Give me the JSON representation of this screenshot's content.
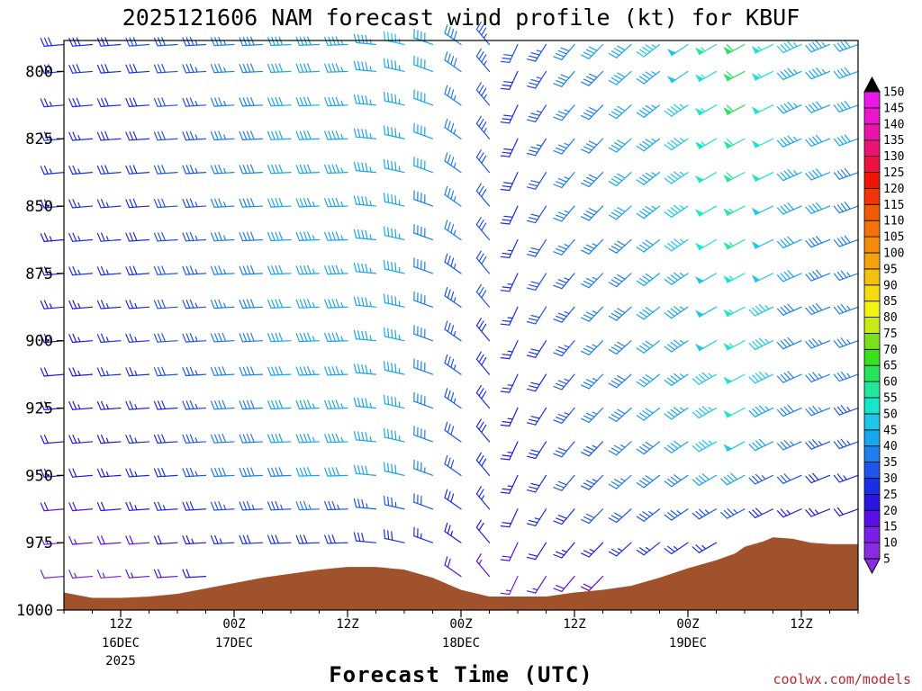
{
  "chart_data": {
    "type": "wind-barb-time-height",
    "title": "2025121606 NAM forecast wind profile (kt) for KBUF",
    "xlabel": "Forecast Time (UTC)",
    "ylabel": "",
    "credit": "coolwx.com/models",
    "y_axis": {
      "ticks": [
        800,
        825,
        850,
        875,
        900,
        925,
        950,
        975,
        1000
      ],
      "lim": [
        788.5,
        1000
      ],
      "units": "hPa"
    },
    "x_axis": {
      "lim_hours": [
        6,
        90
      ],
      "ticks": [
        {
          "hour": 12,
          "label1": "12Z",
          "label2": "16DEC",
          "label3": "2025"
        },
        {
          "hour": 24,
          "label1": "00Z",
          "label2": "17DEC",
          "label3": ""
        },
        {
          "hour": 36,
          "label1": "12Z",
          "label2": "",
          "label3": ""
        },
        {
          "hour": 48,
          "label1": "00Z",
          "label2": "18DEC",
          "label3": ""
        },
        {
          "hour": 60,
          "label1": "12Z",
          "label2": "",
          "label3": ""
        },
        {
          "hour": 72,
          "label1": "00Z",
          "label2": "19DEC",
          "label3": ""
        },
        {
          "hour": 84,
          "label1": "12Z",
          "label2": "",
          "label3": ""
        }
      ]
    },
    "colorbar": {
      "levels": [
        5,
        10,
        15,
        20,
        25,
        30,
        35,
        40,
        45,
        50,
        55,
        60,
        65,
        70,
        75,
        80,
        85,
        90,
        95,
        100,
        105,
        110,
        115,
        120,
        125,
        130,
        135,
        140,
        145,
        150
      ],
      "colors": [
        "#8a2be2",
        "#7a1fe6",
        "#5a0fe8",
        "#2a14e4",
        "#1a2ee6",
        "#1f55ea",
        "#1f7fee",
        "#17a6f0",
        "#1dc6ea",
        "#18e6cc",
        "#21e89c",
        "#27e45a",
        "#38e01e",
        "#7ae01a",
        "#c8ea18",
        "#f2f214",
        "#f5dc10",
        "#f5c00e",
        "#f5a30c",
        "#f58a0a",
        "#f47209",
        "#f25a08",
        "#f23406",
        "#ee1406",
        "#ec1242",
        "#ec1276",
        "#ec14a8",
        "#ec16cf",
        "#ea19ea"
      ],
      "under_color": "#8a2be2",
      "over_color": "#000000"
    },
    "surface_pressure": {
      "hours": [
        6,
        9,
        12,
        15,
        18,
        21,
        24,
        27,
        30,
        33,
        36,
        39,
        42,
        45,
        48,
        51,
        54,
        57,
        60,
        63,
        66,
        69,
        72,
        75,
        77,
        78,
        80,
        81,
        83,
        85,
        87,
        90
      ],
      "pressure": [
        993.5,
        995.5,
        995.5,
        995,
        994,
        992,
        990,
        988,
        986.5,
        985,
        984,
        984,
        985,
        988,
        992.5,
        995,
        995,
        995,
        993.5,
        992.5,
        991,
        988,
        984.5,
        981.5,
        979,
        976.5,
        974.5,
        973,
        973.5,
        975,
        975.5,
        975.5
      ],
      "fill_color": "#a0522d"
    },
    "wind": {
      "hours": [
        6,
        9,
        12,
        15,
        18,
        21,
        24,
        27,
        30,
        33,
        36,
        39,
        42,
        45,
        48,
        51,
        54,
        57,
        60,
        63,
        66,
        69,
        72,
        75,
        78,
        81,
        84,
        87,
        90
      ],
      "levels_hPa": [
        790,
        800,
        812.5,
        825,
        837.5,
        850,
        862.5,
        875,
        887.5,
        900,
        912.5,
        925,
        937.5,
        950,
        962.5,
        975,
        987.5,
        1000
      ],
      "speed_key_hours": [
        6,
        15,
        24,
        33,
        42,
        48,
        54,
        60,
        66,
        72,
        78,
        84,
        90
      ],
      "speed_upper_kt": [
        28,
        30,
        37,
        42,
        45,
        38,
        30,
        38,
        42,
        48,
        62,
        45,
        42
      ],
      "speed_lower_kt": [
        18,
        24,
        38,
        44,
        42,
        30,
        22,
        30,
        35,
        40,
        44,
        34,
        30
      ],
      "direction_key_hours": [
        6,
        36,
        45,
        51,
        54,
        60,
        75,
        90
      ],
      "direction_deg": [
        265,
        268,
        290,
        320,
        205,
        220,
        240,
        250
      ]
    }
  }
}
